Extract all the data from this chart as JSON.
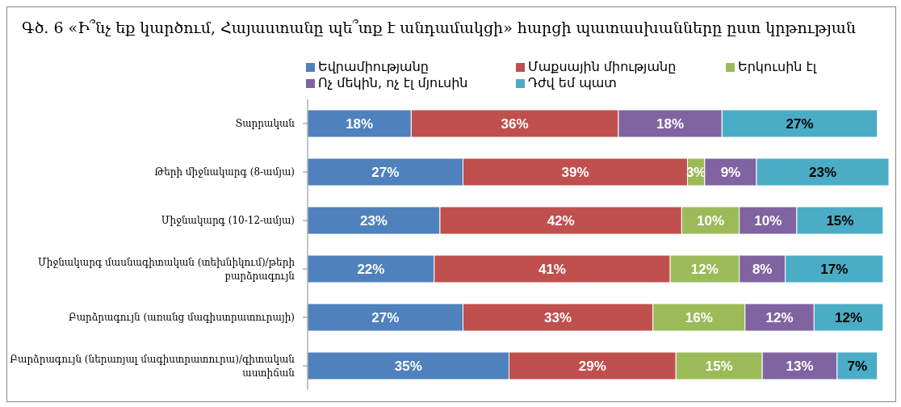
{
  "chart_data": {
    "type": "bar",
    "orientation": "horizontal",
    "stacked": true,
    "title": "Գծ. 6 «Ի՞նչ եք կարծում, Հայաստանը պե՞տք է անդամակցի» հարցի պատասխանները ըստ կրթության",
    "legend": "top",
    "categories": [
      "Տարրական",
      "Թերի միջնակարգ (8-ամյա)",
      "Միջնակարգ (10-12-ամյա)",
      "Միջնակարգ մասնագիտական (տեխնիկում)/թերի բարձրագույն",
      "Բարձրագույն (առանց մագիստրատուրայի)",
      "Բարձրագույն (ներառյալ մագիստրատուրա)/գիտական աստիճան"
    ],
    "series": [
      {
        "name": "Եվրամիությանը",
        "color": "#4f81bd",
        "values": [
          18,
          27,
          23,
          22,
          27,
          35
        ],
        "value_labels": [
          "18%",
          "27%",
          "23%",
          "22%",
          "27%",
          "35%"
        ]
      },
      {
        "name": "Մաքսային միությանը",
        "color": "#c0504d",
        "values": [
          36,
          39,
          42,
          41,
          33,
          29
        ],
        "value_labels": [
          "36%",
          "39%",
          "42%",
          "41%",
          "33%",
          "29%"
        ]
      },
      {
        "name": "Երկուսին էլ",
        "color": "#9bbb59",
        "values": [
          null,
          3,
          10,
          12,
          16,
          15
        ],
        "value_labels": [
          null,
          "3%",
          "10%",
          "12%",
          "16%",
          "15%"
        ]
      },
      {
        "name": "Ոչ մեկին, ոչ էլ մյուսին",
        "color": "#8064a2",
        "values": [
          18,
          9,
          10,
          8,
          12,
          13
        ],
        "value_labels": [
          "18%",
          "9%",
          "10%",
          "8%",
          "12%",
          "13%"
        ]
      },
      {
        "name": "Դժվ եմ պատ",
        "color": "#4bacc6",
        "values": [
          27,
          23,
          15,
          17,
          12,
          7
        ],
        "value_labels": [
          "27%",
          "23%",
          "15%",
          "17%",
          "12%",
          "7%"
        ]
      }
    ]
  }
}
